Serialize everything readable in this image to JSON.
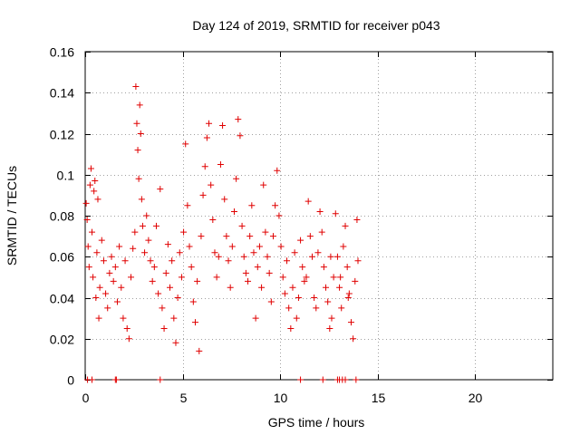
{
  "chart_data": {
    "type": "scatter",
    "title": "Day 124 of 2019, SRMTID for receiver p043",
    "xlabel": "GPS time / hours",
    "ylabel": "SRMTID / TECUs",
    "xlim": [
      0,
      24
    ],
    "ylim": [
      0,
      0.16
    ],
    "xticks": [
      0,
      5,
      10,
      15,
      20
    ],
    "xtick_labels": [
      "0",
      "5",
      "10",
      "15",
      "20"
    ],
    "yticks": [
      0,
      0.02,
      0.04,
      0.06,
      0.08,
      0.1,
      0.12,
      0.14,
      0.16
    ],
    "ytick_labels": [
      "0",
      "0.02",
      "0.04",
      "0.06",
      "0.08",
      "0.1",
      "0.12",
      "0.14",
      "0.16"
    ],
    "grid": true,
    "marker": "+",
    "color": "#e00000",
    "series": [
      {
        "name": "SRMTID",
        "points": [
          [
            0.05,
            0.086
          ],
          [
            0.1,
            0.078
          ],
          [
            0.15,
            0.065
          ],
          [
            0.2,
            0.055
          ],
          [
            0.25,
            0.095
          ],
          [
            0.3,
            0.103
          ],
          [
            0.35,
            0.072
          ],
          [
            0.4,
            0.05
          ],
          [
            0.45,
            0.092
          ],
          [
            0.5,
            0.097
          ],
          [
            0.55,
            0.04
          ],
          [
            0.6,
            0.062
          ],
          [
            0.65,
            0.088
          ],
          [
            0.7,
            0.03
          ],
          [
            0.75,
            0.045
          ],
          [
            0.85,
            0.068
          ],
          [
            0.95,
            0.058
          ],
          [
            1.05,
            0.042
          ],
          [
            1.15,
            0.035
          ],
          [
            1.25,
            0.052
          ],
          [
            1.35,
            0.06
          ],
          [
            1.45,
            0.048
          ],
          [
            1.55,
            0.055
          ],
          [
            1.65,
            0.038
          ],
          [
            1.75,
            0.065
          ],
          [
            1.85,
            0.045
          ],
          [
            1.95,
            0.03
          ],
          [
            2.05,
            0.058
          ],
          [
            2.15,
            0.025
          ],
          [
            2.25,
            0.02
          ],
          [
            2.35,
            0.05
          ],
          [
            2.45,
            0.064
          ],
          [
            2.55,
            0.072
          ],
          [
            2.6,
            0.143
          ],
          [
            2.65,
            0.125
          ],
          [
            2.7,
            0.112
          ],
          [
            2.75,
            0.098
          ],
          [
            2.8,
            0.134
          ],
          [
            2.85,
            0.12
          ],
          [
            2.9,
            0.088
          ],
          [
            2.95,
            0.075
          ],
          [
            3.05,
            0.062
          ],
          [
            3.15,
            0.08
          ],
          [
            3.25,
            0.068
          ],
          [
            3.35,
            0.058
          ],
          [
            3.45,
            0.048
          ],
          [
            3.55,
            0.055
          ],
          [
            3.65,
            0.075
          ],
          [
            3.75,
            0.042
          ],
          [
            3.85,
            0.093
          ],
          [
            3.95,
            0.035
          ],
          [
            4.05,
            0.025
          ],
          [
            4.15,
            0.052
          ],
          [
            4.25,
            0.066
          ],
          [
            4.35,
            0.045
          ],
          [
            4.45,
            0.058
          ],
          [
            4.55,
            0.03
          ],
          [
            4.65,
            0.018
          ],
          [
            4.75,
            0.04
          ],
          [
            4.85,
            0.062
          ],
          [
            4.95,
            0.05
          ],
          [
            5.05,
            0.072
          ],
          [
            5.15,
            0.115
          ],
          [
            5.25,
            0.085
          ],
          [
            5.35,
            0.065
          ],
          [
            5.45,
            0.055
          ],
          [
            5.55,
            0.038
          ],
          [
            5.65,
            0.028
          ],
          [
            5.75,
            0.048
          ],
          [
            5.85,
            0.014
          ],
          [
            5.95,
            0.07
          ],
          [
            6.05,
            0.09
          ],
          [
            6.15,
            0.104
          ],
          [
            6.25,
            0.118
          ],
          [
            6.35,
            0.125
          ],
          [
            6.45,
            0.095
          ],
          [
            6.55,
            0.078
          ],
          [
            6.65,
            0.062
          ],
          [
            6.75,
            0.05
          ],
          [
            6.85,
            0.06
          ],
          [
            6.95,
            0.105
          ],
          [
            7.05,
            0.124
          ],
          [
            7.15,
            0.088
          ],
          [
            7.25,
            0.07
          ],
          [
            7.35,
            0.058
          ],
          [
            7.45,
            0.045
          ],
          [
            7.55,
            0.065
          ],
          [
            7.65,
            0.082
          ],
          [
            7.75,
            0.098
          ],
          [
            7.85,
            0.127
          ],
          [
            7.95,
            0.119
          ],
          [
            8.05,
            0.075
          ],
          [
            8.15,
            0.06
          ],
          [
            8.25,
            0.052
          ],
          [
            8.35,
            0.048
          ],
          [
            8.45,
            0.07
          ],
          [
            8.55,
            0.085
          ],
          [
            8.65,
            0.062
          ],
          [
            8.75,
            0.03
          ],
          [
            8.85,
            0.055
          ],
          [
            8.95,
            0.065
          ],
          [
            9.05,
            0.045
          ],
          [
            9.15,
            0.095
          ],
          [
            9.25,
            0.072
          ],
          [
            9.35,
            0.06
          ],
          [
            9.45,
            0.052
          ],
          [
            9.55,
            0.038
          ],
          [
            9.65,
            0.07
          ],
          [
            9.75,
            0.085
          ],
          [
            9.85,
            0.102
          ],
          [
            9.95,
            0.08
          ],
          [
            10.05,
            0.065
          ],
          [
            10.15,
            0.05
          ],
          [
            10.25,
            0.042
          ],
          [
            10.35,
            0.058
          ],
          [
            10.45,
            0.035
          ],
          [
            10.55,
            0.025
          ],
          [
            10.65,
            0.045
          ],
          [
            10.75,
            0.062
          ],
          [
            10.85,
            0.03
          ],
          [
            10.95,
            0.04
          ],
          [
            11.05,
            0.068
          ],
          [
            11.15,
            0.055
          ],
          [
            11.25,
            0.048
          ],
          [
            11.35,
            0.05
          ],
          [
            11.45,
            0.087
          ],
          [
            11.55,
            0.07
          ],
          [
            11.65,
            0.06
          ],
          [
            11.75,
            0.04
          ],
          [
            11.85,
            0.035
          ],
          [
            11.95,
            0.062
          ],
          [
            12.05,
            0.082
          ],
          [
            12.15,
            0.072
          ],
          [
            12.25,
            0.055
          ],
          [
            12.35,
            0.045
          ],
          [
            12.45,
            0.038
          ],
          [
            12.55,
            0.025
          ],
          [
            12.65,
            0.03
          ],
          [
            12.75,
            0.05
          ],
          [
            12.85,
            0.081
          ],
          [
            12.95,
            0.06
          ],
          [
            13.05,
            0.045
          ],
          [
            13.15,
            0.035
          ],
          [
            13.25,
            0.065
          ],
          [
            13.35,
            0.075
          ],
          [
            13.45,
            0.055
          ],
          [
            13.55,
            0.042
          ],
          [
            13.65,
            0.028
          ],
          [
            13.75,
            0.02
          ],
          [
            13.85,
            0.048
          ],
          [
            13.95,
            0.078
          ],
          [
            14.0,
            0.058
          ],
          [
            13.5,
            0.04
          ],
          [
            13.1,
            0.05
          ],
          [
            12.6,
            0.06
          ],
          [
            0.35,
            0.0
          ],
          [
            0.12,
            0.0
          ],
          [
            1.55,
            0.0
          ],
          [
            1.6,
            0.0
          ],
          [
            3.85,
            0.0
          ],
          [
            11.05,
            0.0
          ],
          [
            12.2,
            0.0
          ],
          [
            12.95,
            0.0
          ],
          [
            13.05,
            0.0
          ],
          [
            13.2,
            0.0
          ],
          [
            13.35,
            0.0
          ],
          [
            13.9,
            0.0
          ]
        ]
      }
    ]
  }
}
